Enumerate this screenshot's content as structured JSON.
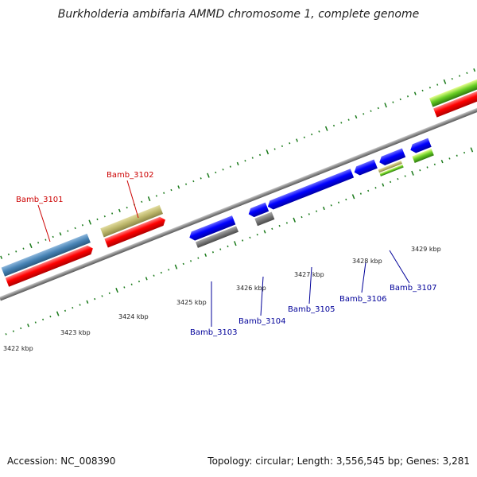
{
  "title": "Burkholderia ambifaria AMMD chromosome 1, complete genome",
  "colors": {
    "forward_label": "#cc0000",
    "reverse_label": "#000099",
    "cds_red": "#ff0000",
    "gene_blue": "#0000ff",
    "gene_olive": "#bdb76b",
    "gene_steel": "#4682b4",
    "gene_grey": "#777777",
    "gene_green": "#66cc22",
    "tick_green": "#1a7a1a",
    "backbone": "#9a9a9a"
  },
  "scale_labels": [
    "3422 kbp",
    "3423 kbp",
    "3424 kbp",
    "3425 kbp",
    "3426 kbp",
    "3427 kbp",
    "3428 kbp",
    "3429 kbp"
  ],
  "forward_genes": [
    {
      "name": "Bamb_3101",
      "icon": "callout-line"
    },
    {
      "name": "Bamb_3102",
      "icon": "callout-line"
    }
  ],
  "reverse_genes": [
    {
      "name": "Bamb_3103"
    },
    {
      "name": "Bamb_3104"
    },
    {
      "name": "Bamb_3105"
    },
    {
      "name": "Bamb_3106"
    },
    {
      "name": "Bamb_3107"
    }
  ],
  "footer": {
    "accession_label": "Accession:",
    "accession_value": "NC_008390",
    "topology_label": "Topology:",
    "topology_value": "circular;",
    "length_label": "Length:",
    "length_value": "3,556,545 bp;",
    "genes_label": "Genes:",
    "genes_value": "3,281"
  }
}
